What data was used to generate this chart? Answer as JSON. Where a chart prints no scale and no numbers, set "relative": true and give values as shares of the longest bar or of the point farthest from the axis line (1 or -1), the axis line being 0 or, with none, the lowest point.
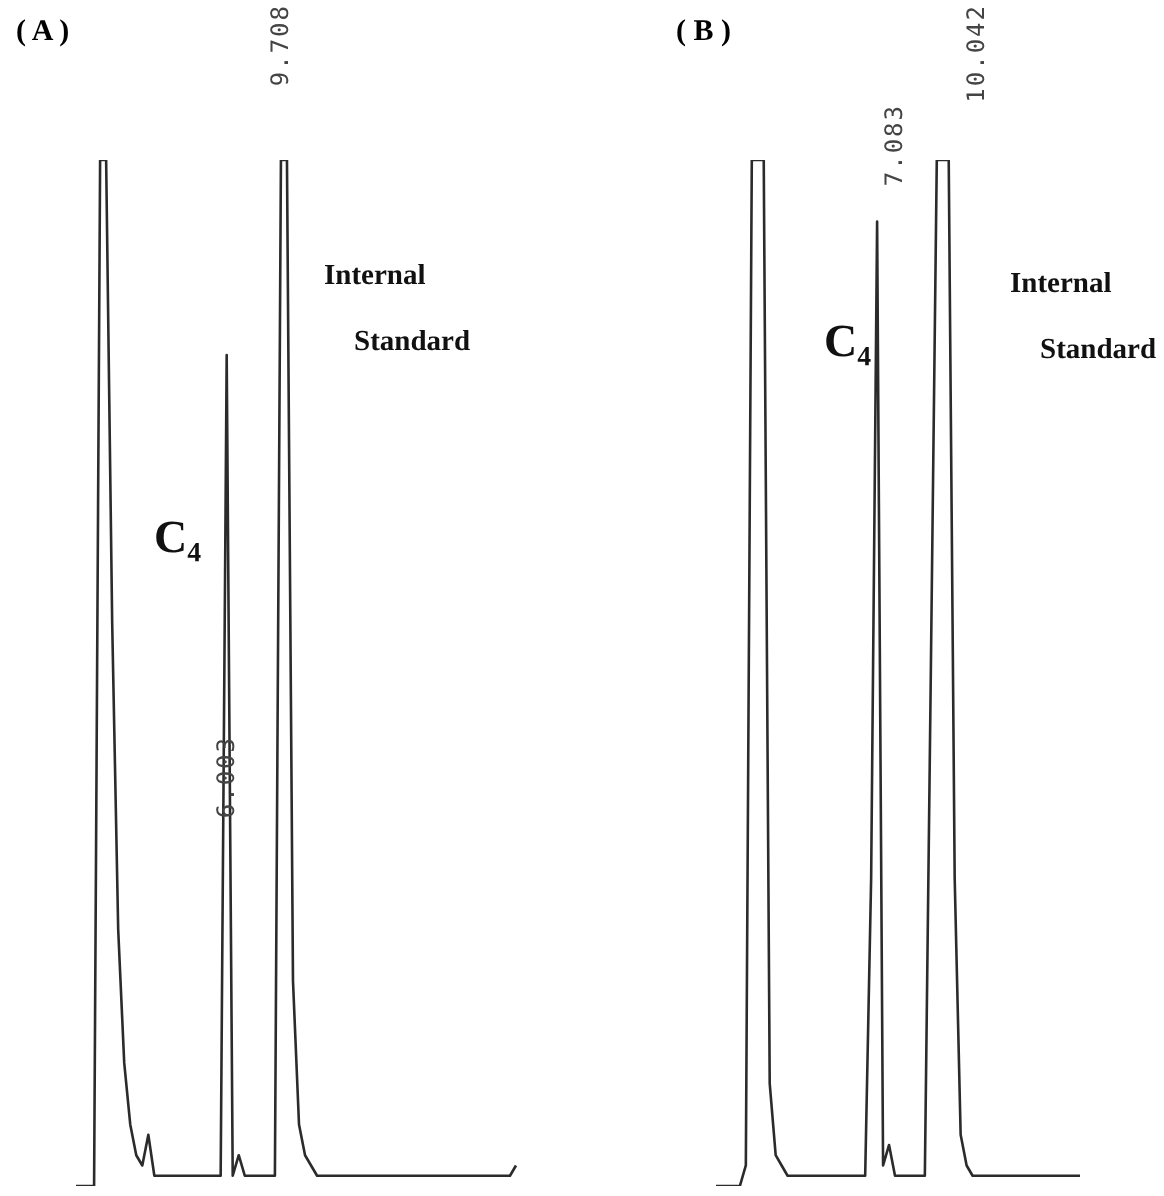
{
  "chart_data": [
    {
      "type": "line",
      "title": "( A )",
      "relative": true,
      "color": "#2b2b2b",
      "annotations": [
        "9.708",
        "6.003",
        "C₄",
        "Internal Standard"
      ],
      "categories": [
        null,
        null,
        null,
        null,
        null,
        null,
        null,
        null,
        null,
        null,
        null,
        null,
        null,
        null,
        null,
        null,
        null,
        null,
        null,
        null,
        null,
        null,
        null,
        null,
        null,
        null,
        null,
        null,
        null,
        null,
        null,
        null,
        null,
        null,
        null,
        null,
        null,
        null,
        null,
        null,
        null,
        null,
        null,
        null,
        null,
        null,
        null,
        null,
        null,
        null,
        null,
        null,
        null,
        null,
        null,
        null,
        null,
        null,
        null,
        null,
        null,
        null,
        null,
        null,
        null,
        null,
        null,
        null,
        null,
        null,
        null,
        null,
        null,
        null
      ],
      "values": [
        0,
        0,
        0,
        0,
        1,
        1,
        0.55,
        0.25,
        0.12,
        0.06,
        0.03,
        0.02,
        0.05,
        0.01,
        0.01,
        0.01,
        0.01,
        0.01,
        0.01,
        0.01,
        0.01,
        0.01,
        0.01,
        0.01,
        0.01,
        0.81,
        0.01,
        0.03,
        0.01,
        0.01,
        0.01,
        0.01,
        0.01,
        0.01,
        1,
        1,
        0.2,
        0.06,
        0.03,
        0.02,
        0.01,
        0.01,
        0.01,
        0.01,
        0.01,
        0.01,
        0.01,
        0.01,
        0.01,
        0.01,
        0.01,
        0.01,
        0.01,
        0.01,
        0.01,
        0.01,
        0.01,
        0.01,
        0.01,
        0.01,
        0.01,
        0.01,
        0.01,
        0.01,
        0.01,
        0.01,
        0.01,
        0.01,
        0.01,
        0.01,
        0.01,
        0.01,
        0.01,
        0.02
      ]
    },
    {
      "type": "line",
      "title": "( B )",
      "relative": true,
      "color": "#2b2b2b",
      "annotations": [
        "7.083",
        "10.042",
        "C₄",
        "Internal Standard"
      ],
      "categories": [
        null,
        null,
        null,
        null,
        null,
        null,
        null,
        null,
        null,
        null,
        null,
        null,
        null,
        null,
        null,
        null,
        null,
        null,
        null,
        null,
        null,
        null,
        null,
        null,
        null,
        null,
        null,
        null,
        null,
        null,
        null,
        null,
        null,
        null,
        null,
        null,
        null,
        null,
        null,
        null,
        null,
        null,
        null,
        null,
        null,
        null,
        null,
        null,
        null,
        null,
        null,
        null,
        null,
        null,
        null,
        null,
        null,
        null,
        null,
        null,
        null,
        null
      ],
      "values": [
        0,
        0,
        0,
        0,
        0,
        0.02,
        1,
        1,
        1,
        0.1,
        0.03,
        0.02,
        0.01,
        0.01,
        0.01,
        0.01,
        0.01,
        0.01,
        0.01,
        0.01,
        0.01,
        0.01,
        0.01,
        0.01,
        0.01,
        0.01,
        0.3,
        0.94,
        0.02,
        0.04,
        0.01,
        0.01,
        0.01,
        0.01,
        0.01,
        0.01,
        0.5,
        1,
        1,
        1,
        0.3,
        0.05,
        0.02,
        0.01,
        0.01,
        0.01,
        0.01,
        0.01,
        0.01,
        0.01,
        0.01,
        0.01,
        0.01,
        0.01,
        0.01,
        0.01,
        0.01,
        0.01,
        0.01,
        0.01,
        0.01,
        0.01
      ]
    }
  ]
}
